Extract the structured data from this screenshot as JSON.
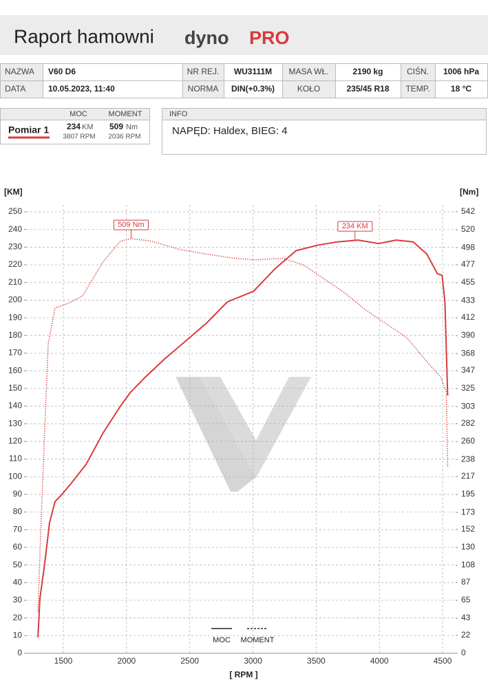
{
  "header": {
    "title": "Raport hamowni",
    "brand_a": "dyno",
    "brand_b": "PRO"
  },
  "table": {
    "rows": [
      [
        "NAZWA",
        "V60 D6",
        "NR REJ.",
        "WU3111M",
        "MASA WŁ.",
        "2190 kg",
        "CIŚN.",
        "1006 hPa"
      ],
      [
        "DATA",
        "10.05.2023, 11:40",
        "NORMA",
        "DIN(+0.3%)",
        "KOŁO",
        "235/45 R18",
        "TEMP.",
        "18 °C"
      ]
    ]
  },
  "summary": {
    "col_moc": "MOC",
    "col_moment": "MOMENT",
    "name": "Pomiar 1",
    "moc": "234",
    "moc_unit": "KM",
    "moc_rpm": "3807 RPM",
    "moment": "509",
    "moment_unit": "Nm",
    "moment_rpm": "2036 RPM"
  },
  "info": {
    "title": "INFO",
    "text": "NAPĘD: Haldex,  BIEG: 4"
  },
  "chart_data": {
    "type": "line",
    "x_label": "[ RPM ]",
    "y_label": "[KM]",
    "y2_label": "[Nm]",
    "xlim": [
      1206,
      4603
    ],
    "xticks": [
      1500,
      2000,
      2500,
      3000,
      3500,
      4000,
      4500
    ],
    "ylim": [
      0,
      250
    ],
    "yticks": [
      0,
      10,
      20,
      30,
      40,
      50,
      60,
      70,
      80,
      90,
      100,
      110,
      120,
      130,
      140,
      150,
      160,
      170,
      180,
      190,
      200,
      210,
      220,
      230,
      240,
      250
    ],
    "y2lim": [
      0,
      542
    ],
    "y2ticks": [
      0,
      22,
      43,
      65,
      87,
      108,
      130,
      152,
      173,
      195,
      217,
      238,
      260,
      282,
      303,
      325,
      347,
      368,
      390,
      412,
      433,
      455,
      477,
      498,
      520,
      542
    ],
    "grid": true,
    "series": [
      {
        "name": "MOC",
        "color": "#d93a3a",
        "style": "solid",
        "x": [
          1299,
          1315,
          1353,
          1391,
          1435,
          1489,
          1571,
          1680,
          1816,
          1952,
          2034,
          2143,
          2306,
          2470,
          2633,
          2797,
          3004,
          3178,
          3341,
          3505,
          3668,
          3831,
          3995,
          4131,
          4267,
          4376,
          4458,
          4496,
          4518,
          4540
        ],
        "values": [
          9,
          31,
          51,
          74,
          86,
          90,
          97,
          107,
          125,
          140,
          148,
          156,
          167,
          177,
          187,
          199,
          205,
          218,
          228,
          231,
          233,
          234,
          232,
          234,
          233,
          226,
          215,
          214,
          199,
          146
        ]
      },
      {
        "name": "MOMENT",
        "color": "#d93a3a",
        "style": "dotted",
        "axis": "y2",
        "x": [
          1299,
          1326,
          1380,
          1435,
          1544,
          1653,
          1816,
          1952,
          2036,
          2197,
          2415,
          2633,
          2851,
          3014,
          3232,
          3396,
          3559,
          3722,
          3886,
          4049,
          4213,
          4376,
          4485,
          4529,
          4540
        ],
        "values": [
          51,
          169,
          380,
          424,
          430,
          439,
          481,
          506,
          509,
          506,
          496,
          490,
          485,
          483,
          485,
          477,
          460,
          443,
          422,
          405,
          388,
          358,
          339,
          321,
          228
        ]
      }
    ],
    "annotations": [
      {
        "text": "509 Nm",
        "x": 2036,
        "y": 509,
        "axis": "y2"
      },
      {
        "text": "234 KM",
        "x": 3807,
        "y": 234
      }
    ]
  }
}
